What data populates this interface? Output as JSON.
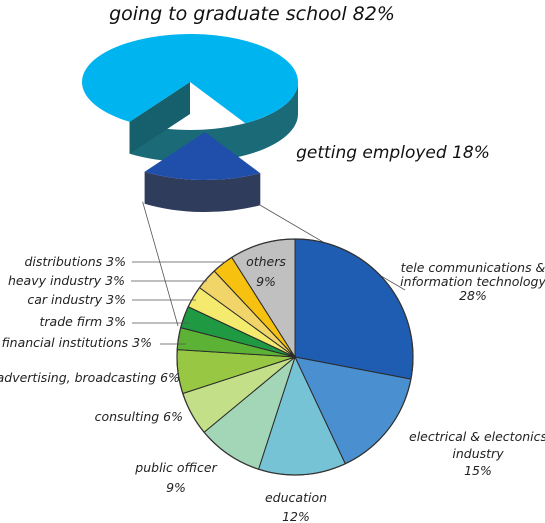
{
  "colors": {
    "grad_top": "#00b4ef",
    "grad_side": "#1a6a78",
    "emp_top": "#1f4faa",
    "emp_side": "#2f3c5c",
    "leader": "#555555",
    "edge": "#333333"
  },
  "chart_data": [
    {
      "type": "pie",
      "style": "3d-exploded",
      "title": "",
      "slices": [
        {
          "label": "going to graduate school 82%",
          "value": 82,
          "color": "#00b4ef",
          "side_color": "#1a6a78"
        },
        {
          "label": "getting employed 18%",
          "value": 18,
          "color": "#1f4faa",
          "side_color": "#2f3c5c"
        }
      ]
    },
    {
      "type": "pie",
      "title": "",
      "start_angle_deg": -90,
      "slices": [
        {
          "label_lines": [
            "tele communications &",
            "information technology",
            "28%"
          ],
          "value": 28,
          "color": "#1e5db1"
        },
        {
          "label_lines": [
            "electrical & electonics",
            "industry",
            "15%"
          ],
          "value": 15,
          "color": "#4a90d0"
        },
        {
          "label_lines": [
            "education",
            "12%"
          ],
          "value": 12,
          "color": "#77c3d6"
        },
        {
          "label_lines": [
            "public officer",
            "9%"
          ],
          "value": 9,
          "color": "#a3d5b7"
        },
        {
          "label_lines": [
            "consulting 6%"
          ],
          "value": 6,
          "color": "#c3e088"
        },
        {
          "label_lines": [
            "advertising, broadcasting 6%"
          ],
          "value": 6,
          "color": "#98c843"
        },
        {
          "label_lines": [
            "financial institutions 3%"
          ],
          "value": 3,
          "color": "#5cb234"
        },
        {
          "label_lines": [
            "trade firm 3%"
          ],
          "value": 3,
          "color": "#1f9a43"
        },
        {
          "label_lines": [
            "car industry 3%"
          ],
          "value": 3,
          "color": "#f3ea6e"
        },
        {
          "label_lines": [
            "heavy industry 3%"
          ],
          "value": 3,
          "color": "#f2d568"
        },
        {
          "label_lines": [
            "distributions 3%"
          ],
          "value": 3,
          "color": "#f6c20f"
        },
        {
          "label_lines": [
            "others",
            "9%"
          ],
          "value": 9,
          "color": "#c0c0c0"
        }
      ]
    }
  ]
}
